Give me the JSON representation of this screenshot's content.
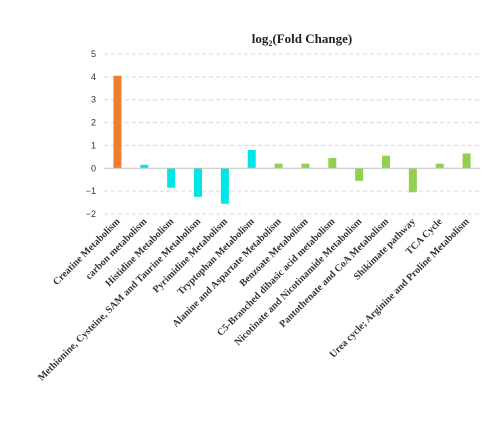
{
  "chart_data": {
    "type": "bar",
    "title_prefix": "log",
    "title_subscript": "2",
    "title_suffix": "(Fold Change)",
    "xlabel": "",
    "ylabel": "",
    "ylim": [
      -2,
      5
    ],
    "yticks": [
      5,
      4,
      3,
      2,
      1,
      0,
      -1,
      -2
    ],
    "grid": true,
    "categories": [
      "Creatine Metabolism",
      "carbon metabolism",
      "Histidine Metabolism",
      "Methionine, Cysteine, SAM and Taurine Metabolism",
      "Pyrimidine Metabolism",
      "Tryptophan Metabolism",
      "Alanine and Aspartate Metabolism",
      "Benzoate Metabolism",
      "C5-Branched dibasic acid metabolism",
      "Nicotinate and Nicotinamide Metabolism",
      "Pantothenate and CoA Metabolism",
      "Shikimate pathway",
      "TCA Cycle",
      "Urea cycle; Arginine and Proline Metabolism"
    ],
    "values": [
      4.05,
      0.15,
      -0.85,
      -1.25,
      -1.55,
      0.8,
      0.2,
      0.2,
      0.45,
      -0.55,
      0.55,
      -1.05,
      0.2,
      0.65
    ],
    "colors": [
      "#ed7d31",
      "#00e5e5",
      "#00e5e5",
      "#00e5e5",
      "#00e5e5",
      "#00e5e5",
      "#92d050",
      "#92d050",
      "#92d050",
      "#92d050",
      "#92d050",
      "#92d050",
      "#92d050",
      "#92d050"
    ]
  }
}
